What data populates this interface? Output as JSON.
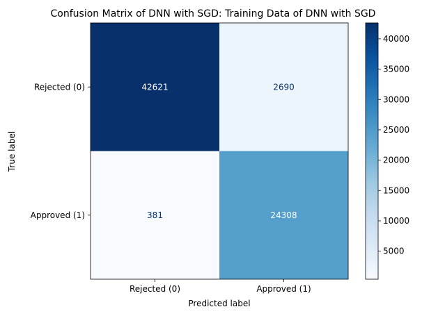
{
  "chart_data": {
    "type": "heatmap",
    "title": "Confusion Matrix of DNN with SGD: Training Data of DNN with SGD",
    "xlabel": "Predicted label",
    "ylabel": "True label",
    "x_categories": [
      "Rejected (0)",
      "Approved (1)"
    ],
    "y_categories": [
      "Rejected (0)",
      "Approved (1)"
    ],
    "matrix": [
      [
        42621,
        2690
      ],
      [
        381,
        24308
      ]
    ],
    "colormap": "Blues",
    "colorbar": {
      "range": [
        381,
        42621
      ],
      "ticks": [
        5000,
        10000,
        15000,
        20000,
        25000,
        30000,
        35000,
        40000
      ]
    },
    "colors": {
      "text_on_dark": "#ffffff",
      "text_on_light": "#08306b"
    }
  }
}
